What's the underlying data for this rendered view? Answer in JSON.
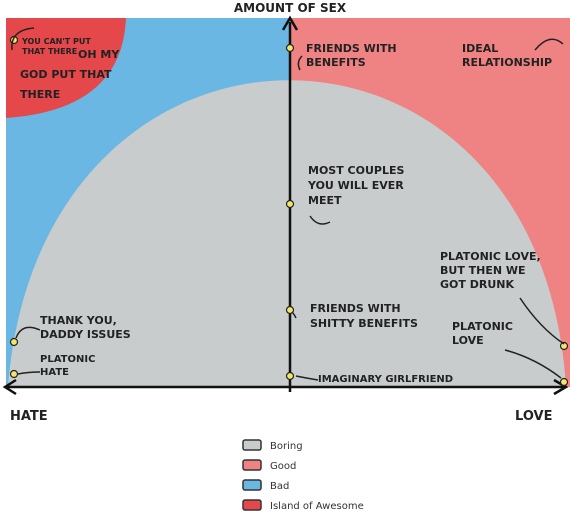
{
  "axes": {
    "y_label": "AMOUNT OF SEX",
    "x_left": "HATE",
    "x_right": "LOVE"
  },
  "annotations": [
    {
      "lines": [
        "YOU CAN'T PUT",
        "THAT THERE"
      ]
    },
    {
      "lines": [
        "OH MY",
        "GOD PUT THAT",
        "THERE"
      ]
    },
    {
      "lines": [
        "FRIENDS WITH",
        "BENEFITS"
      ]
    },
    {
      "lines": [
        "IDEAL",
        "RELATIONSHIP"
      ]
    },
    {
      "lines": [
        "MOST COUPLES",
        "YOU WILL EVER",
        "MEET"
      ]
    },
    {
      "lines": [
        "FRIENDS WITH",
        "SHITTY BENEFITS"
      ]
    },
    {
      "lines": [
        "IMAGINARY GIRLFRIEND"
      ]
    },
    {
      "lines": [
        "PLATONIC LOVE,",
        "BUT THEN WE",
        "GOT DRUNK"
      ]
    },
    {
      "lines": [
        "PLATONIC",
        "LOVE"
      ]
    },
    {
      "lines": [
        "THANK YOU,",
        "DADDY ISSUES"
      ]
    },
    {
      "lines": [
        "PLATONIC",
        "HATE"
      ]
    }
  ],
  "legend": [
    {
      "label": "Boring",
      "color": "#c9cccd"
    },
    {
      "label": "Good",
      "color": "#ef8383"
    },
    {
      "label": "Bad",
      "color": "#6ab7e4"
    },
    {
      "label": "Island of Awesome",
      "color": "#e4484a"
    }
  ]
}
